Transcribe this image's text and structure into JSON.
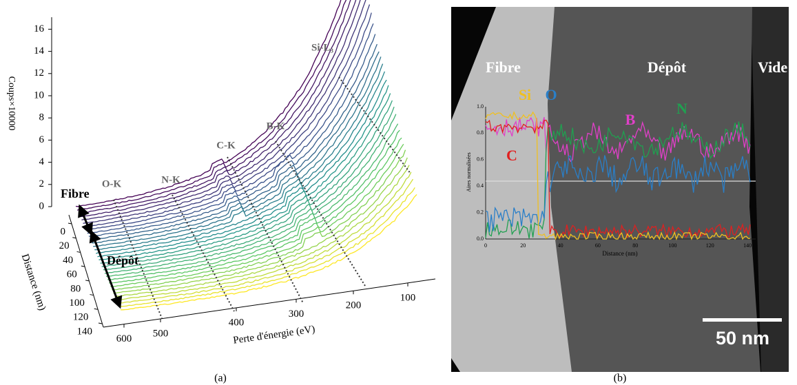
{
  "panel_a": {
    "caption": "(a)",
    "y_axis_title": "Coups×10000",
    "y_ticks": [
      "0",
      "2",
      "4",
      "6",
      "8",
      "10",
      "12",
      "14",
      "16"
    ],
    "distance_axis_title": "Distance (nm)",
    "distance_ticks": [
      "0",
      "20",
      "40",
      "60",
      "80",
      "100",
      "120",
      "140"
    ],
    "energy_axis_title": "Perte d'énergie (eV)",
    "energy_ticks": [
      "600",
      "500",
      "400",
      "300",
      "200",
      "100"
    ],
    "edge_labels": [
      "O-K",
      "N-K",
      "C-K",
      "B-K",
      "Si-L₃"
    ],
    "region_labels": [
      "Fibre",
      "Dépôt"
    ]
  },
  "panel_b": {
    "caption": "(b)",
    "region_labels": [
      "Fibre",
      "Dépôt",
      "Vide"
    ],
    "element_labels": [
      "Si",
      "O",
      "B",
      "N",
      "C"
    ],
    "y_axis_title": "Aires normalisées",
    "y_ticks": [
      "0.0",
      "0.2",
      "0.4",
      "0.6",
      "0.8",
      "1.0"
    ],
    "x_axis_title": "Distance (nm)",
    "x_ticks": [
      "0",
      "20",
      "40",
      "60",
      "80",
      "100",
      "120",
      "140"
    ],
    "scale_bar": "50 nm"
  }
}
